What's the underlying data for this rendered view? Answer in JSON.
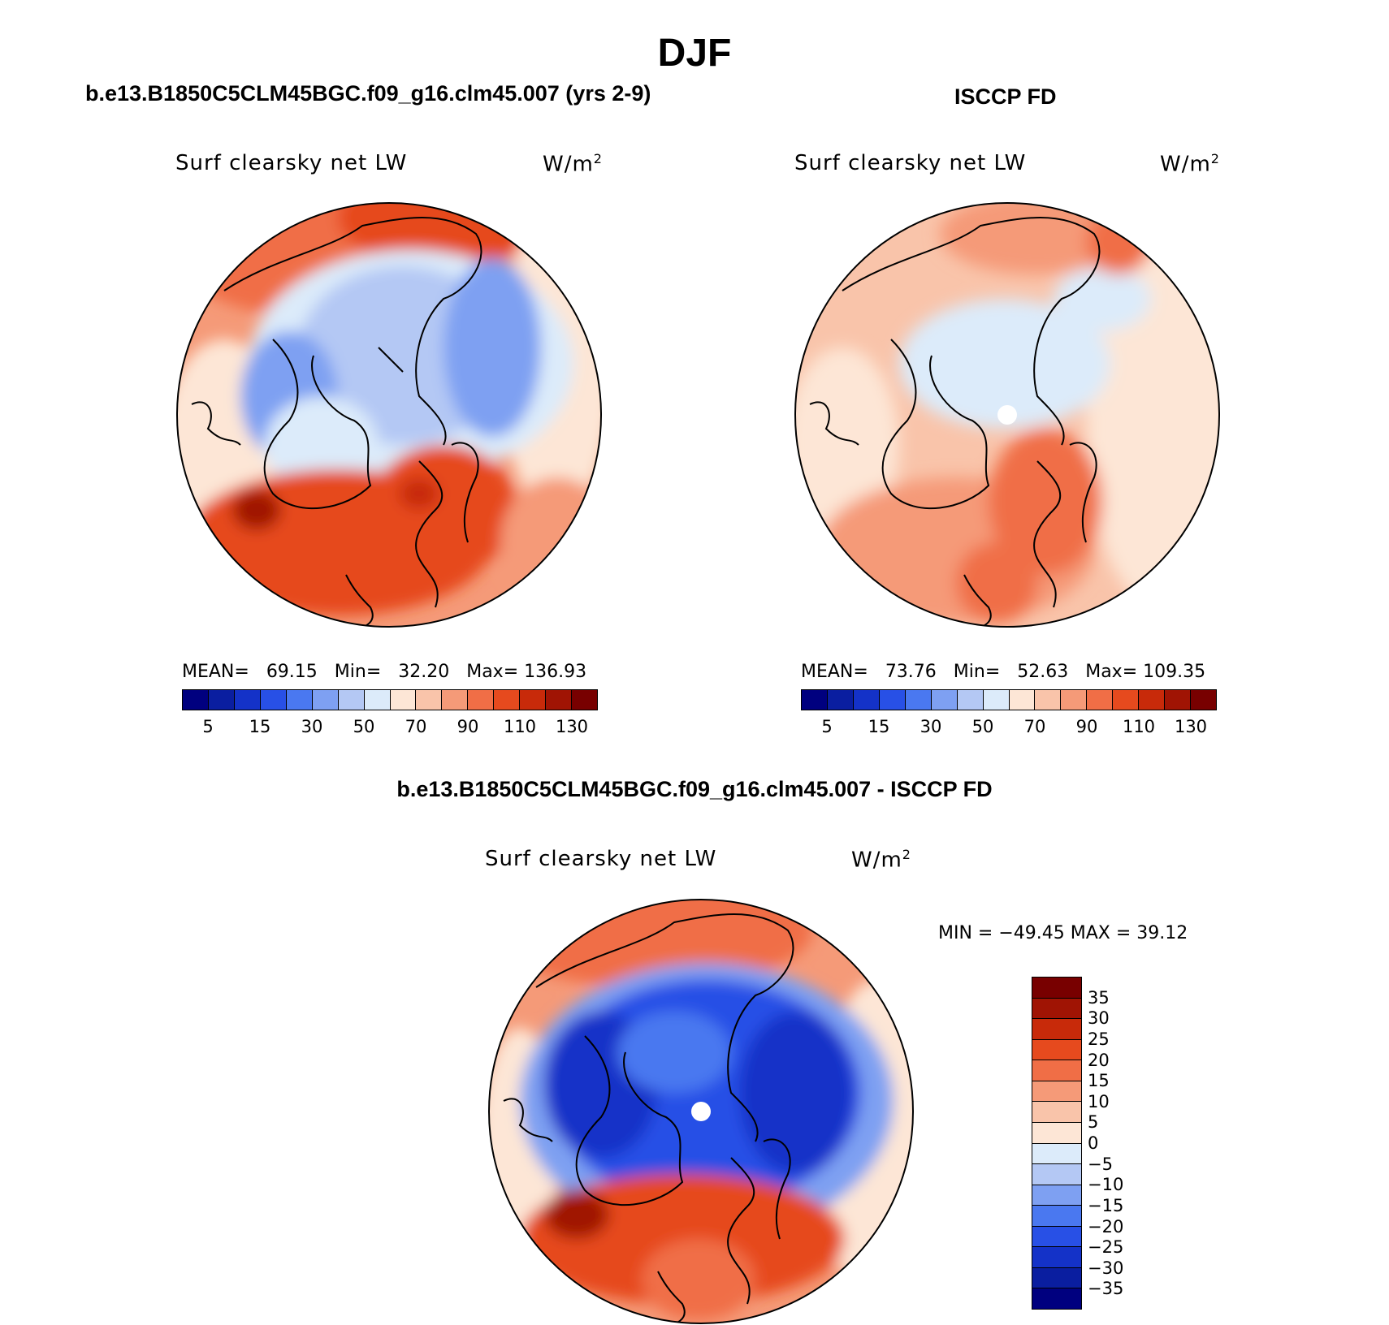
{
  "figure": {
    "title": "DJF",
    "case_title": "b.e13.B1850C5CLM45BGC.f09_g16.clm45.007 (yrs 2-9)",
    "obs_title": "ISCCP FD",
    "diff_title": "b.e13.B1850C5CLM45BGC.f09_g16.clm45.007 - ISCCP FD"
  },
  "panels": {
    "model": {
      "varname": "Surf clearsky net LW",
      "unit": "W/m",
      "unit_exp": "2",
      "stats": {
        "mean_label": "MEAN=",
        "mean": "69.15",
        "min_label": "Min=",
        "min": "32.20",
        "max_label": "Max=",
        "max": "136.93"
      }
    },
    "obs": {
      "varname": "Surf clearsky net LW",
      "unit": "W/m",
      "unit_exp": "2",
      "stats": {
        "mean_label": "MEAN=",
        "mean": "73.76",
        "min_label": "Min=",
        "min": "52.63",
        "max_label": "Max=",
        "max": "109.35"
      }
    },
    "diff": {
      "varname": "Surf clearsky net LW",
      "unit": "W/m",
      "unit_exp": "2",
      "stats": {
        "text": "MIN = −49.45 MAX =  39.12"
      }
    }
  },
  "colorbars": {
    "abs": {
      "colors": [
        "#00007f",
        "#0a1ea0",
        "#1432c8",
        "#2850e6",
        "#4a78f0",
        "#7ea0f2",
        "#b4c8f4",
        "#dcebfa",
        "#fde6d6",
        "#f9c4aa",
        "#f59a78",
        "#f06e46",
        "#e64a1e",
        "#c82a0a",
        "#a01404",
        "#780000"
      ],
      "tick_labels": [
        "5",
        "15",
        "30",
        "50",
        "70",
        "90",
        "110",
        "130"
      ]
    },
    "diff": {
      "colors": [
        "#780000",
        "#a01404",
        "#c82a0a",
        "#e64a1e",
        "#f06e46",
        "#f59a78",
        "#f9c4aa",
        "#fde6d6",
        "#dcebfa",
        "#b4c8f4",
        "#7ea0f2",
        "#4a78f0",
        "#2850e6",
        "#1432c8",
        "#0a1ea0",
        "#00007f"
      ],
      "tick_labels": [
        "35",
        "30",
        "25",
        "20",
        "15",
        "10",
        "5",
        "0",
        "−5",
        "−10",
        "−15",
        "−20",
        "−25",
        "−30",
        "−35"
      ]
    }
  }
}
